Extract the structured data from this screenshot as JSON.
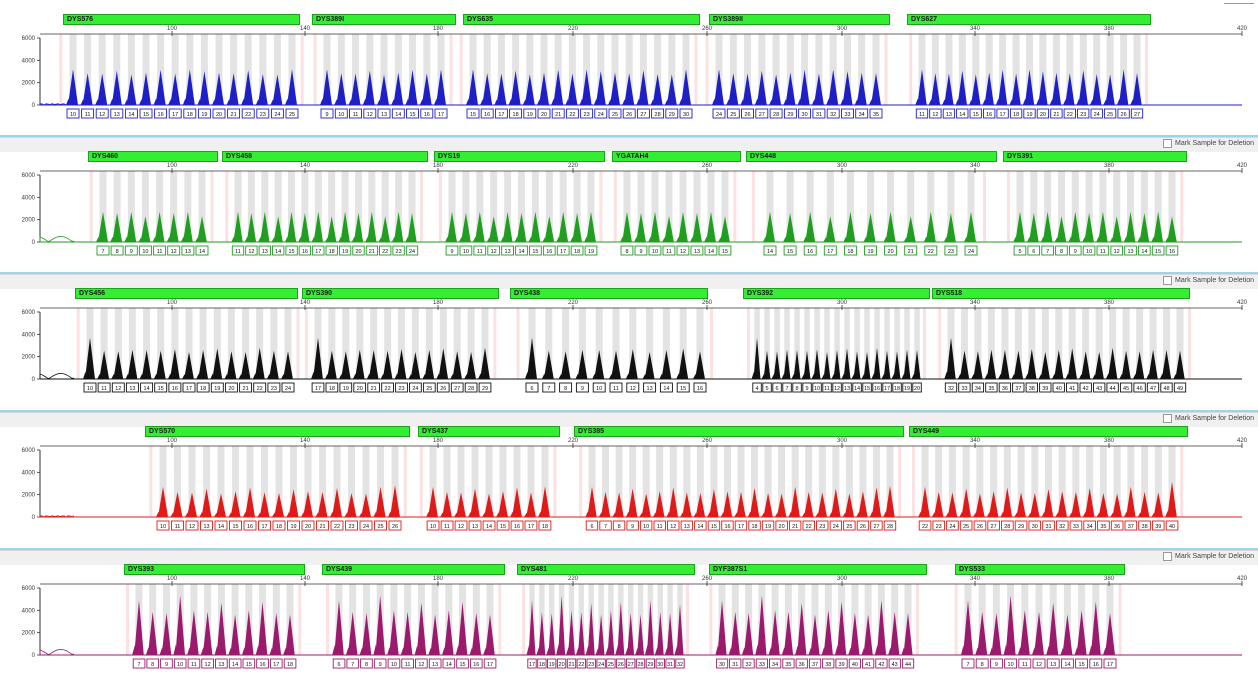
{
  "mark_label": "Mark Sample for Deletion",
  "x_ticks": [
    "100",
    "140",
    "180",
    "220",
    "260",
    "300",
    "340",
    "380",
    "420"
  ],
  "y_ticks": [
    "6000",
    "4000",
    "2000",
    "0"
  ],
  "panels": [
    {
      "color": "#1f1fc8",
      "loci": [
        {
          "name": "DYS576",
          "alleles": [
            "10",
            "11",
            "12",
            "13",
            "14",
            "15",
            "16",
            "17",
            "18",
            "19",
            "20",
            "21",
            "22",
            "23",
            "24",
            "25"
          ]
        },
        {
          "name": "DYS389I",
          "alleles": [
            "9",
            "10",
            "11",
            "12",
            "13",
            "14",
            "15",
            "16",
            "17"
          ]
        },
        {
          "name": "DYS635",
          "alleles": [
            "15",
            "16",
            "17",
            "18",
            "19",
            "20",
            "21",
            "22",
            "23",
            "24",
            "25",
            "26",
            "27",
            "28",
            "29",
            "30"
          ]
        },
        {
          "name": "DYS389II",
          "alleles": [
            "24",
            "25",
            "26",
            "27",
            "28",
            "29",
            "30",
            "31",
            "32",
            "33",
            "34",
            "35"
          ]
        },
        {
          "name": "DYS627",
          "alleles": [
            "11",
            "12",
            "13",
            "14",
            "15",
            "16",
            "17",
            "18",
            "19",
            "20",
            "21",
            "22",
            "23",
            "24",
            "25",
            "26",
            "27"
          ]
        }
      ]
    },
    {
      "color": "#1f9e1f",
      "loci": [
        {
          "name": "DYS460",
          "alleles": [
            "7",
            "8",
            "9",
            "10",
            "11",
            "12",
            "13",
            "14"
          ]
        },
        {
          "name": "DYS458",
          "alleles": [
            "11",
            "12",
            "13",
            "14",
            "15",
            "16",
            "17",
            "18",
            "19",
            "20",
            "21",
            "22",
            "23",
            "24"
          ]
        },
        {
          "name": "DYS19",
          "alleles": [
            "9",
            "10",
            "11",
            "12",
            "13",
            "14",
            "15",
            "16",
            "17",
            "18",
            "19"
          ]
        },
        {
          "name": "YGATAH4",
          "alleles": [
            "8",
            "9",
            "10",
            "11",
            "12",
            "13",
            "14",
            "15"
          ]
        },
        {
          "name": "DYS448",
          "alleles": [
            "14",
            "15",
            "16",
            "17",
            "18",
            "19",
            "20",
            "21",
            "22",
            "23",
            "24"
          ]
        },
        {
          "name": "DYS391",
          "alleles": [
            "5",
            "6",
            "7",
            "8",
            "9",
            "10",
            "11",
            "12",
            "13",
            "14",
            "15",
            "16"
          ]
        }
      ]
    },
    {
      "color": "#111111",
      "loci": [
        {
          "name": "DYS456",
          "alleles": [
            "10",
            "11",
            "12",
            "13",
            "14",
            "15",
            "16",
            "17",
            "18",
            "19",
            "20",
            "21",
            "22",
            "23",
            "24"
          ]
        },
        {
          "name": "DYS390",
          "alleles": [
            "17",
            "18",
            "19",
            "20",
            "21",
            "22",
            "23",
            "24",
            "25",
            "26",
            "27",
            "28",
            "29"
          ]
        },
        {
          "name": "DYS438",
          "alleles": [
            "6",
            "7",
            "8",
            "9",
            "10",
            "11",
            "12",
            "13",
            "14",
            "15",
            "16"
          ]
        },
        {
          "name": "DYS392",
          "alleles": [
            "4",
            "5",
            "6",
            "7",
            "8",
            "9",
            "10",
            "11",
            "12",
            "13",
            "14",
            "15",
            "16",
            "17",
            "18",
            "19",
            "20"
          ]
        },
        {
          "name": "DYS518",
          "alleles": [
            "32",
            "33",
            "34",
            "35",
            "36",
            "37",
            "38",
            "39",
            "40",
            "41",
            "42",
            "43",
            "44",
            "45",
            "46",
            "47",
            "48",
            "49"
          ]
        }
      ]
    },
    {
      "color": "#e01919",
      "loci": [
        {
          "name": "DYS570",
          "alleles": [
            "10",
            "11",
            "12",
            "13",
            "14",
            "15",
            "16",
            "17",
            "18",
            "19",
            "20",
            "21",
            "22",
            "23",
            "24",
            "25",
            "26"
          ]
        },
        {
          "name": "DYS437",
          "alleles": [
            "10",
            "11",
            "12",
            "13",
            "14",
            "15",
            "16",
            "17",
            "18"
          ]
        },
        {
          "name": "DYS385",
          "alleles": [
            "6",
            "7",
            "8",
            "9",
            "10",
            "11",
            "12",
            "13",
            "14",
            "15",
            "16",
            "17",
            "18",
            "19",
            "20",
            "21",
            "22",
            "23",
            "24",
            "25",
            "26",
            "27",
            "28"
          ]
        },
        {
          "name": "DYS449",
          "alleles": [
            "22",
            "23",
            "24",
            "25",
            "26",
            "27",
            "28",
            "29",
            "30",
            "31",
            "32",
            "33",
            "34",
            "35",
            "36",
            "37",
            "38",
            "39",
            "40"
          ]
        }
      ]
    },
    {
      "color": "#9c1a6e",
      "loci": [
        {
          "name": "DYS393",
          "alleles": [
            "7",
            "8",
            "9",
            "10",
            "11",
            "12",
            "13",
            "14",
            "15",
            "16",
            "17",
            "18"
          ]
        },
        {
          "name": "DYS439",
          "alleles": [
            "6",
            "7",
            "8",
            "9",
            "10",
            "11",
            "12",
            "13",
            "14",
            "15",
            "16",
            "17"
          ]
        },
        {
          "name": "DYS481",
          "alleles": [
            "17",
            "18",
            "19",
            "20",
            "21",
            "22",
            "23",
            "24",
            "25",
            "26",
            "27",
            "28",
            "29",
            "30",
            "31",
            "32"
          ]
        },
        {
          "name": "DYF387S1",
          "alleles": [
            "30",
            "31",
            "32",
            "33",
            "34",
            "35",
            "36",
            "37",
            "38",
            "39",
            "40",
            "41",
            "42",
            "43",
            "44"
          ]
        },
        {
          "name": "DYS533",
          "alleles": [
            "7",
            "8",
            "9",
            "10",
            "11",
            "12",
            "13",
            "14",
            "15",
            "16",
            "17"
          ]
        }
      ]
    }
  ]
}
